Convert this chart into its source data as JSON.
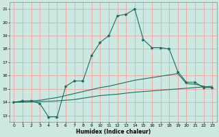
{
  "x": [
    0,
    1,
    2,
    3,
    4,
    5,
    6,
    7,
    8,
    9,
    10,
    11,
    12,
    13,
    14,
    15,
    16,
    17,
    18,
    19,
    20,
    21,
    22,
    23
  ],
  "line1": [
    14.0,
    14.1,
    14.1,
    13.9,
    12.9,
    12.9,
    15.2,
    15.6,
    15.6,
    17.5,
    18.5,
    19.0,
    20.5,
    20.6,
    21.0,
    18.7,
    18.1,
    18.1,
    18.0,
    16.3,
    15.5,
    15.5,
    15.1,
    15.1
  ],
  "line2": [
    14.0,
    14.05,
    14.1,
    14.15,
    14.25,
    14.35,
    14.5,
    14.65,
    14.8,
    14.95,
    15.1,
    15.2,
    15.35,
    15.5,
    15.65,
    15.75,
    15.85,
    15.95,
    16.05,
    16.15,
    15.4,
    15.35,
    15.2,
    15.1
  ],
  "line3": [
    14.0,
    14.0,
    14.02,
    14.05,
    14.07,
    14.1,
    14.15,
    14.2,
    14.3,
    14.4,
    14.5,
    14.55,
    14.6,
    14.68,
    14.75,
    14.8,
    14.85,
    14.9,
    14.95,
    15.0,
    15.05,
    15.1,
    15.15,
    15.2
  ],
  "bg_color": "#cce8e0",
  "grid_color_major": "#f0a0a0",
  "grid_color_minor": "#f0c8c8",
  "line_color": "#1a6b60",
  "xlabel": "Humidex (Indice chaleur)",
  "xlim": [
    -0.5,
    23.5
  ],
  "ylim": [
    12.5,
    21.5
  ],
  "yticks": [
    13,
    14,
    15,
    16,
    17,
    18,
    19,
    20,
    21
  ],
  "xticks": [
    0,
    1,
    2,
    3,
    4,
    5,
    6,
    7,
    8,
    9,
    10,
    11,
    12,
    13,
    14,
    15,
    16,
    17,
    18,
    19,
    20,
    21,
    22,
    23
  ]
}
